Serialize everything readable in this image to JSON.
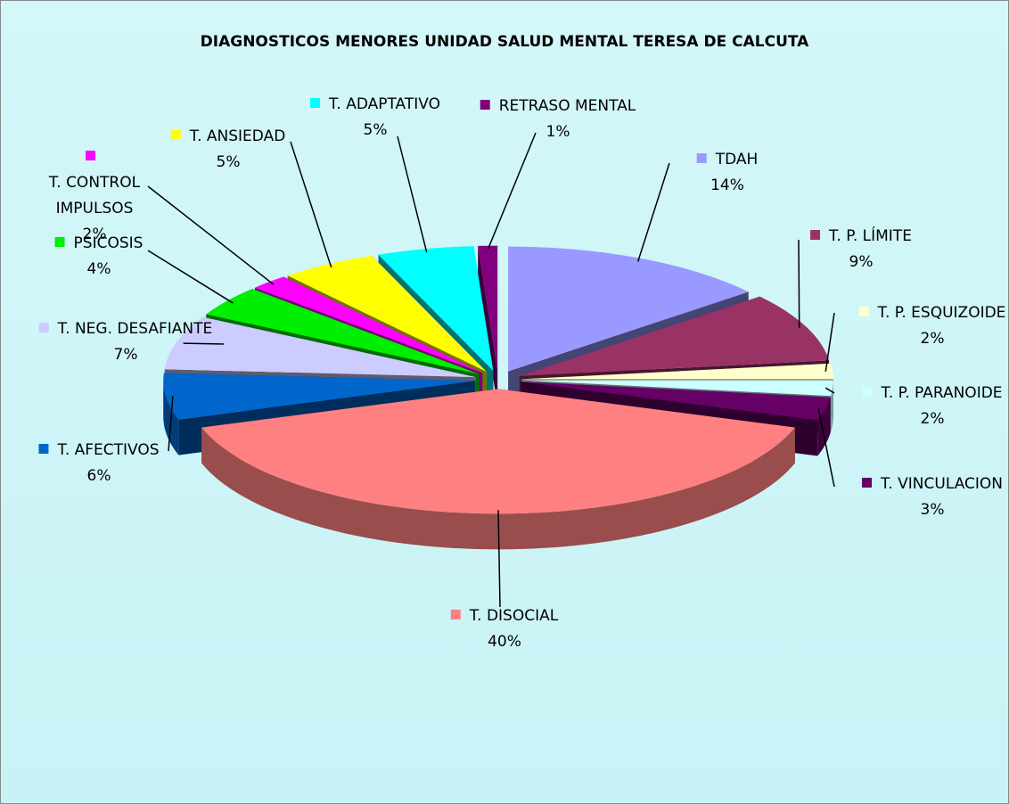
{
  "chart_data": {
    "type": "pie",
    "title": "DIAGNOSTICOS MENORES UNIDAD SALUD MENTAL TERESA DE CALCUTA",
    "categories": [
      "TDAH",
      "T. P. LÍMITE",
      "T. P. ESQUIZOIDE",
      "T. P. PARANOIDE",
      "T. VINCULACION",
      "T. DISOCIAL",
      "T. AFECTIVOS",
      "T. NEG. DESAFIANTE",
      "PSICOSIS",
      "T. CONTROL IMPULSOS",
      "T. ANSIEDAD",
      "T. ADAPTATIVO",
      "RETRASO MENTAL"
    ],
    "values": [
      14,
      9,
      2,
      2,
      3,
      40,
      6,
      7,
      4,
      2,
      5,
      5,
      1
    ],
    "value_labels": [
      "14%",
      "9%",
      "2%",
      "2%",
      "3%",
      "40%",
      "6%",
      "7%",
      "4%",
      "2%",
      "5%",
      "5%",
      "1%"
    ],
    "colors": [
      "#9999ff",
      "#993366",
      "#ffffcc",
      "#ccffff",
      "#660066",
      "#ff8080",
      "#0066cc",
      "#ccccff",
      "#00ee00",
      "#ff00ff",
      "#ffff00",
      "#00ffff",
      "#800080"
    ]
  }
}
